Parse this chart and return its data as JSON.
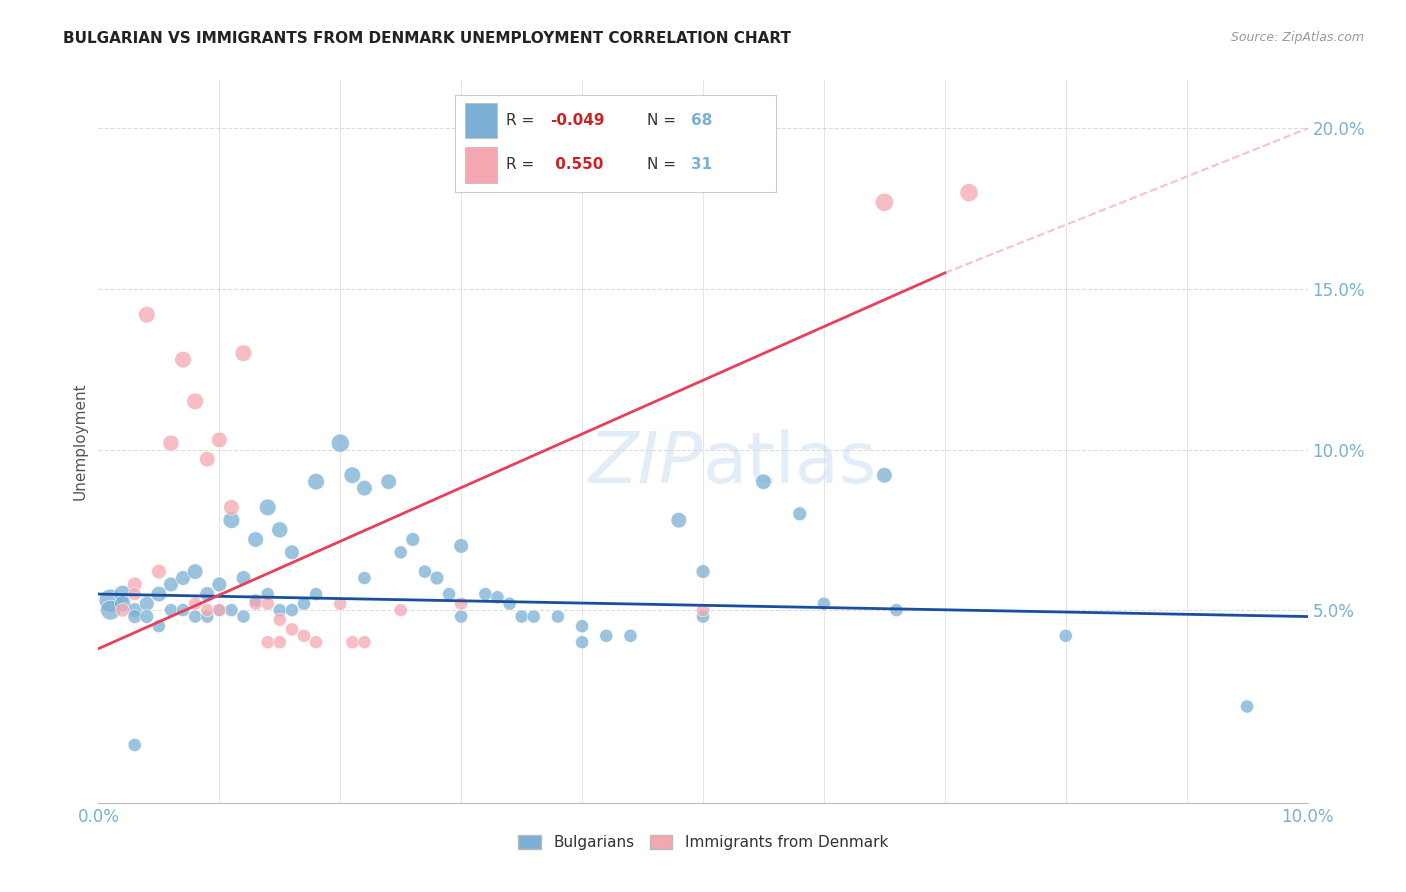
{
  "title": "BULGARIAN VS IMMIGRANTS FROM DENMARK UNEMPLOYMENT CORRELATION CHART",
  "source": "Source: ZipAtlas.com",
  "ylabel": "Unemployment",
  "right_yticks": [
    "20.0%",
    "15.0%",
    "10.0%",
    "5.0%"
  ],
  "right_ytick_vals": [
    0.2,
    0.15,
    0.1,
    0.05
  ],
  "xlim": [
    0.0,
    0.1
  ],
  "ylim": [
    -0.01,
    0.215
  ],
  "background_color": "#ffffff",
  "grid_color": "#dddddd",
  "blue_color": "#7bafd4",
  "pink_color": "#f4a7b0",
  "blue_line_color": "#1a4fa0",
  "pink_line_color": "#e8405a",
  "legend_R_blue": "-0.049",
  "legend_N_blue": "68",
  "legend_R_pink": "0.550",
  "legend_N_pink": "31",
  "blue_reg": [
    0.0,
    0.055,
    0.1,
    0.048
  ],
  "pink_reg_solid": [
    0.0,
    0.038,
    0.07,
    0.155
  ],
  "pink_reg_dashed": [
    0.07,
    0.155,
    0.1,
    0.2
  ],
  "blue_scatter": [
    [
      0.001,
      0.053
    ],
    [
      0.001,
      0.05
    ],
    [
      0.002,
      0.055
    ],
    [
      0.002,
      0.052
    ],
    [
      0.003,
      0.05
    ],
    [
      0.003,
      0.048
    ],
    [
      0.004,
      0.052
    ],
    [
      0.004,
      0.048
    ],
    [
      0.005,
      0.055
    ],
    [
      0.005,
      0.045
    ],
    [
      0.006,
      0.058
    ],
    [
      0.006,
      0.05
    ],
    [
      0.007,
      0.06
    ],
    [
      0.007,
      0.05
    ],
    [
      0.008,
      0.062
    ],
    [
      0.008,
      0.048
    ],
    [
      0.009,
      0.055
    ],
    [
      0.009,
      0.048
    ],
    [
      0.01,
      0.058
    ],
    [
      0.01,
      0.05
    ],
    [
      0.011,
      0.078
    ],
    [
      0.011,
      0.05
    ],
    [
      0.012,
      0.06
    ],
    [
      0.012,
      0.048
    ],
    [
      0.013,
      0.072
    ],
    [
      0.013,
      0.053
    ],
    [
      0.014,
      0.082
    ],
    [
      0.014,
      0.055
    ],
    [
      0.015,
      0.075
    ],
    [
      0.015,
      0.05
    ],
    [
      0.016,
      0.068
    ],
    [
      0.016,
      0.05
    ],
    [
      0.017,
      0.052
    ],
    [
      0.018,
      0.09
    ],
    [
      0.018,
      0.055
    ],
    [
      0.02,
      0.102
    ],
    [
      0.021,
      0.092
    ],
    [
      0.022,
      0.088
    ],
    [
      0.022,
      0.06
    ],
    [
      0.024,
      0.09
    ],
    [
      0.025,
      0.068
    ],
    [
      0.026,
      0.072
    ],
    [
      0.027,
      0.062
    ],
    [
      0.028,
      0.06
    ],
    [
      0.029,
      0.055
    ],
    [
      0.03,
      0.07
    ],
    [
      0.03,
      0.048
    ],
    [
      0.032,
      0.055
    ],
    [
      0.033,
      0.054
    ],
    [
      0.034,
      0.052
    ],
    [
      0.035,
      0.048
    ],
    [
      0.036,
      0.048
    ],
    [
      0.038,
      0.048
    ],
    [
      0.04,
      0.045
    ],
    [
      0.04,
      0.04
    ],
    [
      0.042,
      0.042
    ],
    [
      0.044,
      0.042
    ],
    [
      0.048,
      0.078
    ],
    [
      0.05,
      0.062
    ],
    [
      0.05,
      0.048
    ],
    [
      0.055,
      0.09
    ],
    [
      0.058,
      0.08
    ],
    [
      0.06,
      0.052
    ],
    [
      0.065,
      0.092
    ],
    [
      0.066,
      0.05
    ],
    [
      0.08,
      0.042
    ],
    [
      0.003,
      0.008
    ],
    [
      0.095,
      0.02
    ]
  ],
  "pink_scatter": [
    [
      0.002,
      0.05
    ],
    [
      0.003,
      0.058
    ],
    [
      0.003,
      0.055
    ],
    [
      0.004,
      0.142
    ],
    [
      0.005,
      0.062
    ],
    [
      0.006,
      0.102
    ],
    [
      0.007,
      0.128
    ],
    [
      0.008,
      0.052
    ],
    [
      0.008,
      0.115
    ],
    [
      0.009,
      0.097
    ],
    [
      0.009,
      0.05
    ],
    [
      0.01,
      0.103
    ],
    [
      0.01,
      0.05
    ],
    [
      0.011,
      0.082
    ],
    [
      0.012,
      0.13
    ],
    [
      0.013,
      0.052
    ],
    [
      0.014,
      0.052
    ],
    [
      0.014,
      0.04
    ],
    [
      0.015,
      0.047
    ],
    [
      0.015,
      0.04
    ],
    [
      0.016,
      0.044
    ],
    [
      0.017,
      0.042
    ],
    [
      0.018,
      0.04
    ],
    [
      0.02,
      0.052
    ],
    [
      0.021,
      0.04
    ],
    [
      0.022,
      0.04
    ],
    [
      0.025,
      0.05
    ],
    [
      0.03,
      0.052
    ],
    [
      0.05,
      0.05
    ],
    [
      0.065,
      0.177
    ],
    [
      0.072,
      0.18
    ]
  ],
  "blue_sizes": [
    60,
    45,
    35,
    30,
    25,
    22,
    25,
    22,
    28,
    20,
    25,
    20,
    25,
    20,
    28,
    20,
    25,
    20,
    25,
    20,
    32,
    20,
    25,
    20,
    28,
    20,
    32,
    20,
    30,
    20,
    25,
    20,
    20,
    32,
    20,
    38,
    32,
    28,
    20,
    28,
    20,
    22,
    20,
    22,
    20,
    25,
    20,
    20,
    20,
    20,
    20,
    20,
    20,
    20,
    20,
    20,
    20,
    28,
    22,
    20,
    28,
    22,
    20,
    28,
    20,
    20,
    20,
    20
  ],
  "pink_sizes": [
    22,
    25,
    20,
    32,
    25,
    30,
    32,
    20,
    32,
    28,
    20,
    28,
    20,
    28,
    32,
    20,
    20,
    20,
    20,
    20,
    20,
    20,
    20,
    20,
    20,
    20,
    20,
    20,
    20,
    38,
    38
  ]
}
